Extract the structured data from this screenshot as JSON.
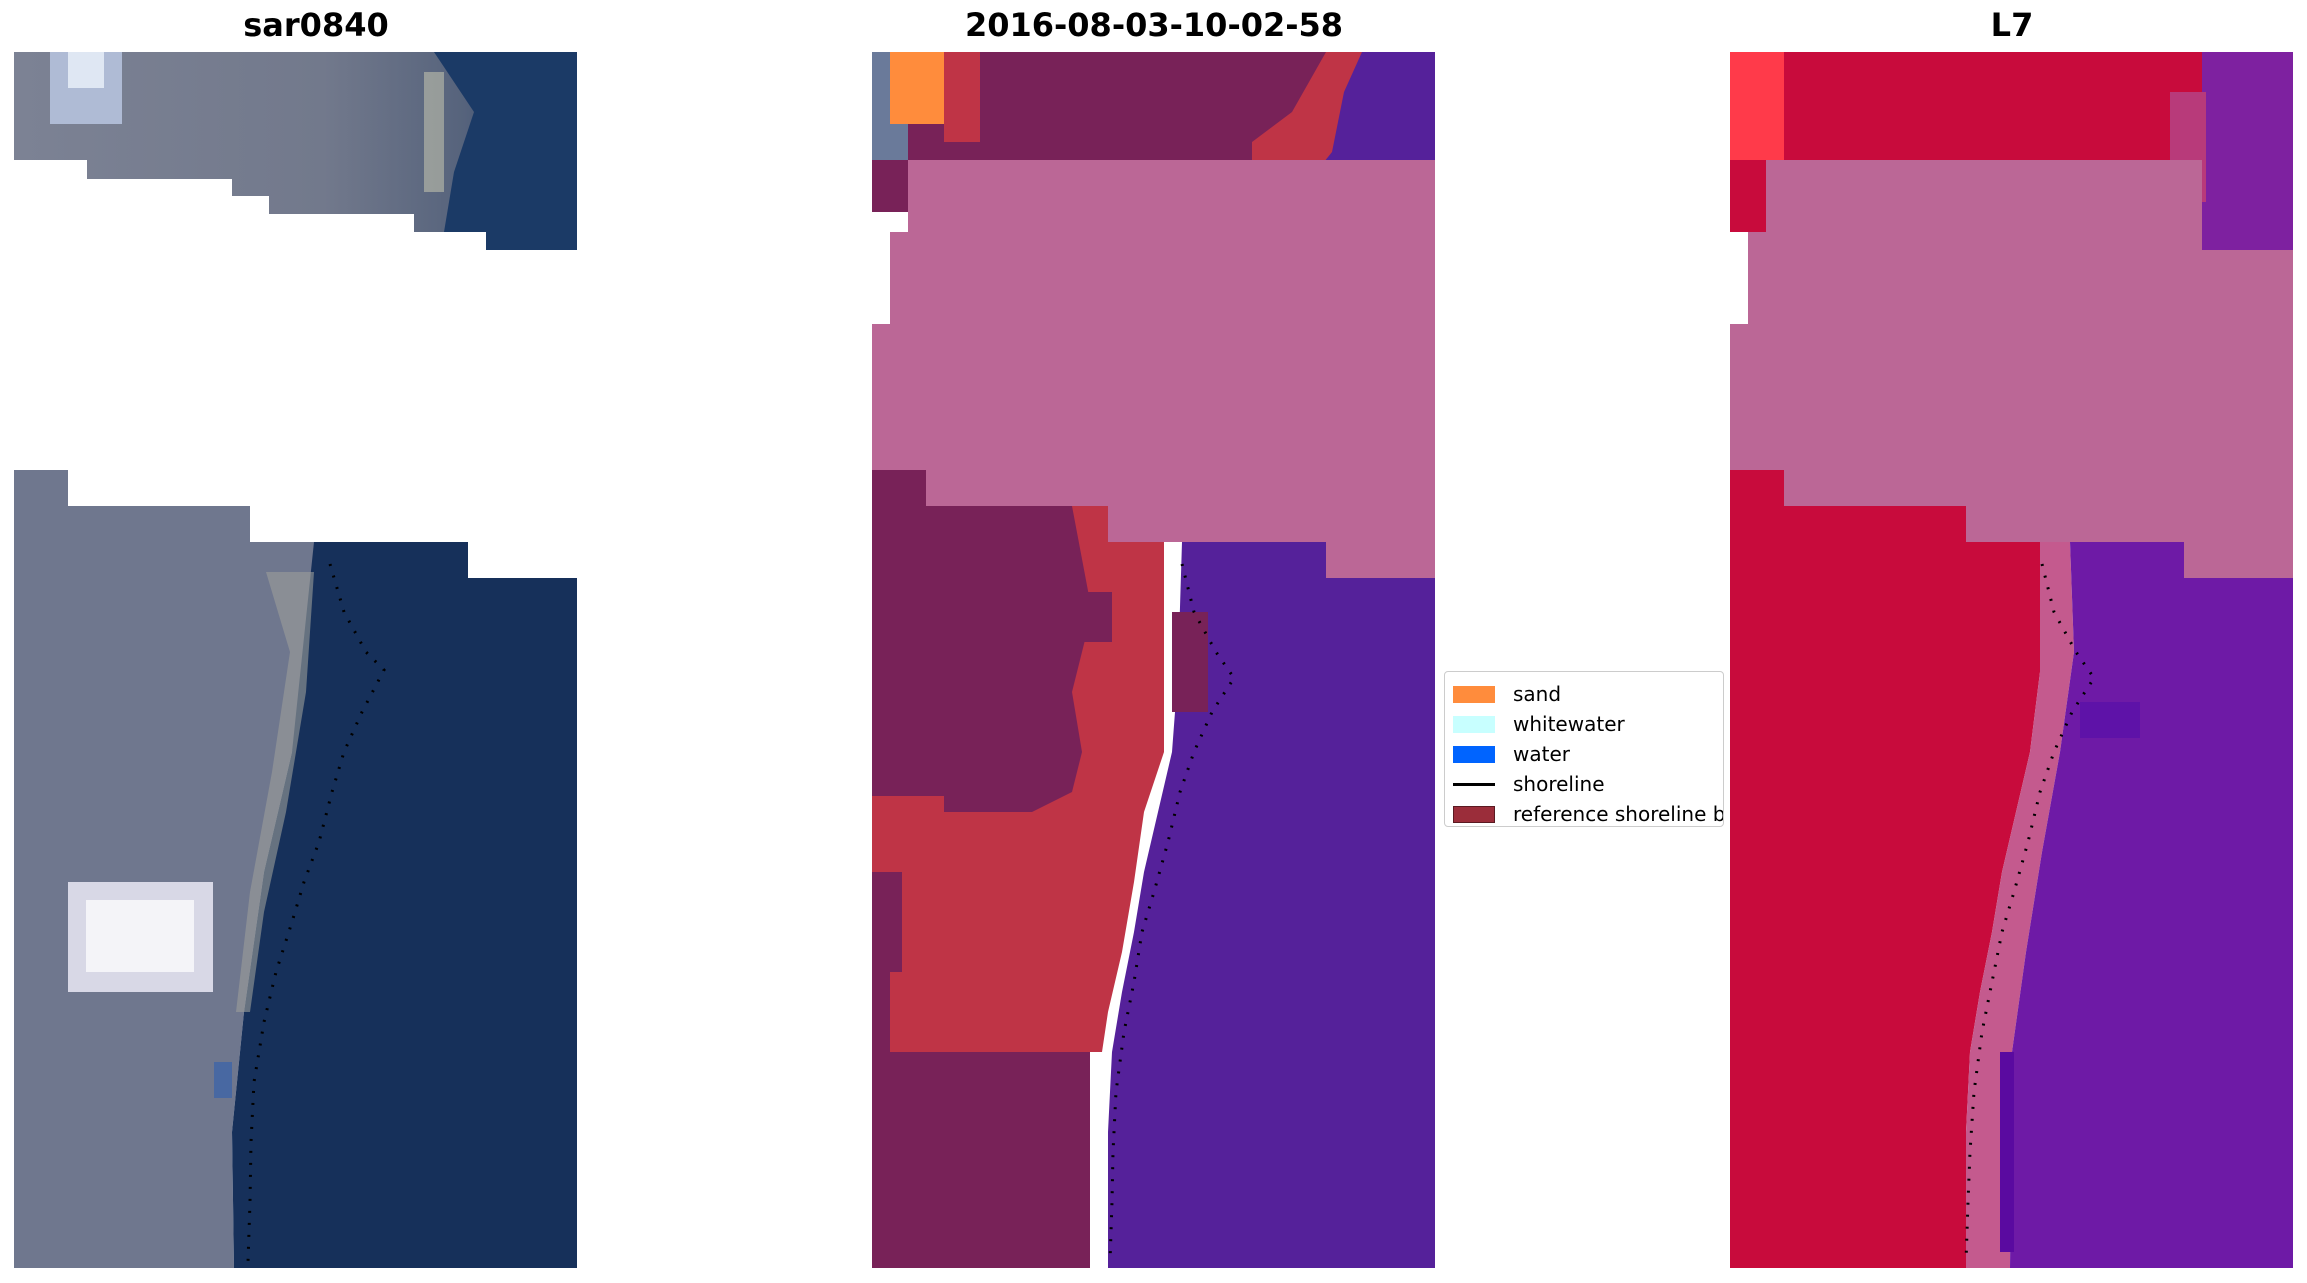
{
  "panels": [
    {
      "title": "sar0840"
    },
    {
      "title": "2016-08-03-10-02-58"
    },
    {
      "title": "L7"
    }
  ],
  "legend": {
    "items": [
      {
        "label": "sand",
        "color": "#ff8c3c",
        "kind": "patch"
      },
      {
        "label": "whitewater",
        "color": "#c8ffff",
        "kind": "patch"
      },
      {
        "label": "water",
        "color": "#0064ff",
        "kind": "patch"
      },
      {
        "label": "shoreline",
        "color": "#000000",
        "kind": "line"
      },
      {
        "label": "reference shoreline b",
        "color": "#9b2d3a",
        "kind": "patch"
      }
    ]
  },
  "colors": {
    "land_rgb": "#6f778e",
    "sea_rgb": "#16305a",
    "cloud_mask": "#bb6796",
    "land_class": "#782258",
    "buffer_class": "#bf3446",
    "water_class": "#55219a",
    "land_false_color": "#c80b3c",
    "sea_false_color": "#6e1aa6",
    "shoreline": "#000000"
  }
}
